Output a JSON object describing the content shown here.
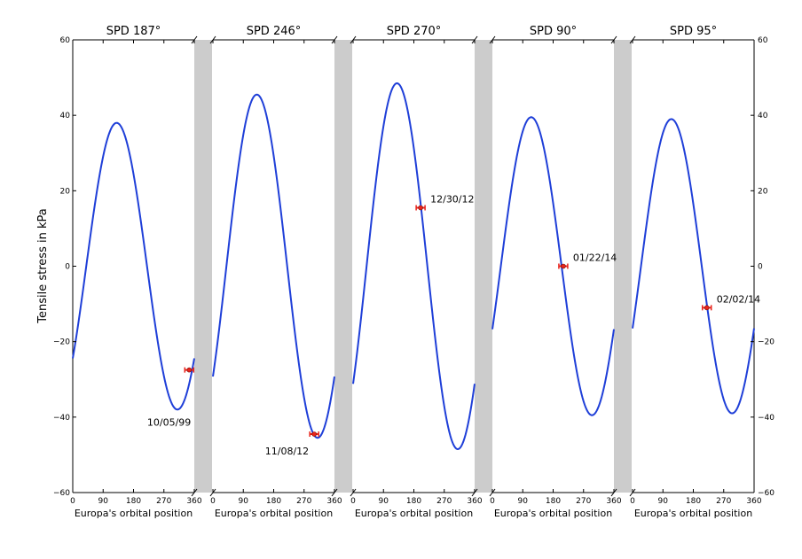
{
  "chart_data": {
    "type": "line",
    "ylabel": "Tensile stress in kPa",
    "ylim": [
      -60,
      60
    ],
    "yticks": [
      60,
      40,
      20,
      0,
      -20,
      -40,
      -60
    ],
    "xlim": [
      0,
      360
    ],
    "xticks": [
      0,
      90,
      180,
      270,
      360
    ],
    "series_color": "#1f3fd8",
    "marker_color": "#e8241c",
    "gap_color": "#cccccc",
    "panels": [
      {
        "title": "SPD 187°",
        "xlabel": "Europa's orbital position",
        "amplitude": 38,
        "peak_x": 130,
        "observation": {
          "label": "10/05/99",
          "x": 345,
          "y": -27.5
        }
      },
      {
        "title": "SPD 246°",
        "xlabel": "Europa's orbital position",
        "amplitude": 45.5,
        "peak_x": 130,
        "observation": {
          "label": "11/08/12",
          "x": 300,
          "y": -44.5
        }
      },
      {
        "title": "SPD 270°",
        "xlabel": "Europa's orbital position",
        "amplitude": 48.5,
        "peak_x": 130,
        "observation": {
          "label": "12/30/12",
          "x": 200,
          "y": 15.5
        }
      },
      {
        "title": "SPD 90°",
        "xlabel": "Europa's orbital position",
        "amplitude": 39.5,
        "peak_x": 115,
        "observation": {
          "label": "01/22/14",
          "x": 210,
          "y": 0
        }
      },
      {
        "title": "SPD 95°",
        "xlabel": "Europa's orbital position",
        "amplitude": 39,
        "peak_x": 115,
        "observation": {
          "label": "02/02/14",
          "x": 220,
          "y": -11
        }
      }
    ]
  }
}
